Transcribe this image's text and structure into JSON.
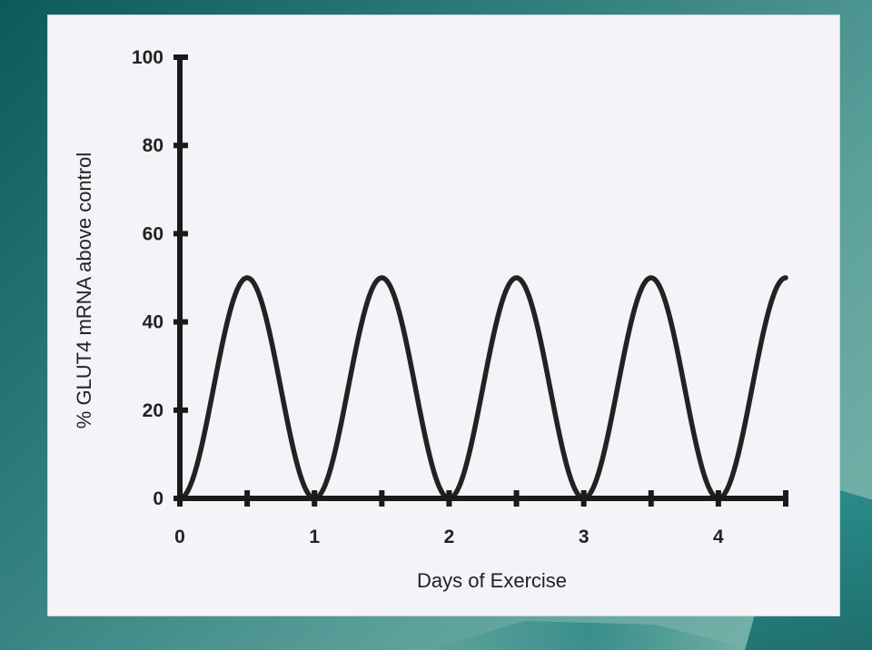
{
  "chart_data": {
    "type": "line",
    "title": "",
    "xlabel": "Days of Exercise",
    "ylabel": "% GLUT4 mRNA above control",
    "xlim": [
      0,
      4.5
    ],
    "ylim": [
      0,
      100
    ],
    "x_ticks": [
      0,
      1,
      2,
      3,
      4
    ],
    "x_tick_labels": [
      "0",
      "1",
      "2",
      "3",
      "4"
    ],
    "y_ticks": [
      0,
      20,
      40,
      60,
      80,
      100
    ],
    "y_tick_labels": [
      "0",
      "20",
      "40",
      "60",
      "80",
      "100"
    ],
    "grid": false,
    "legend": "none",
    "line_color": "#222222",
    "series": [
      {
        "x": [
          0,
          0.5,
          1,
          1.5,
          2,
          2.5,
          3,
          3.5,
          4,
          4.5
        ],
        "values": [
          0,
          50,
          0,
          50,
          0,
          50,
          0,
          50,
          0,
          50
        ]
      }
    ]
  }
}
